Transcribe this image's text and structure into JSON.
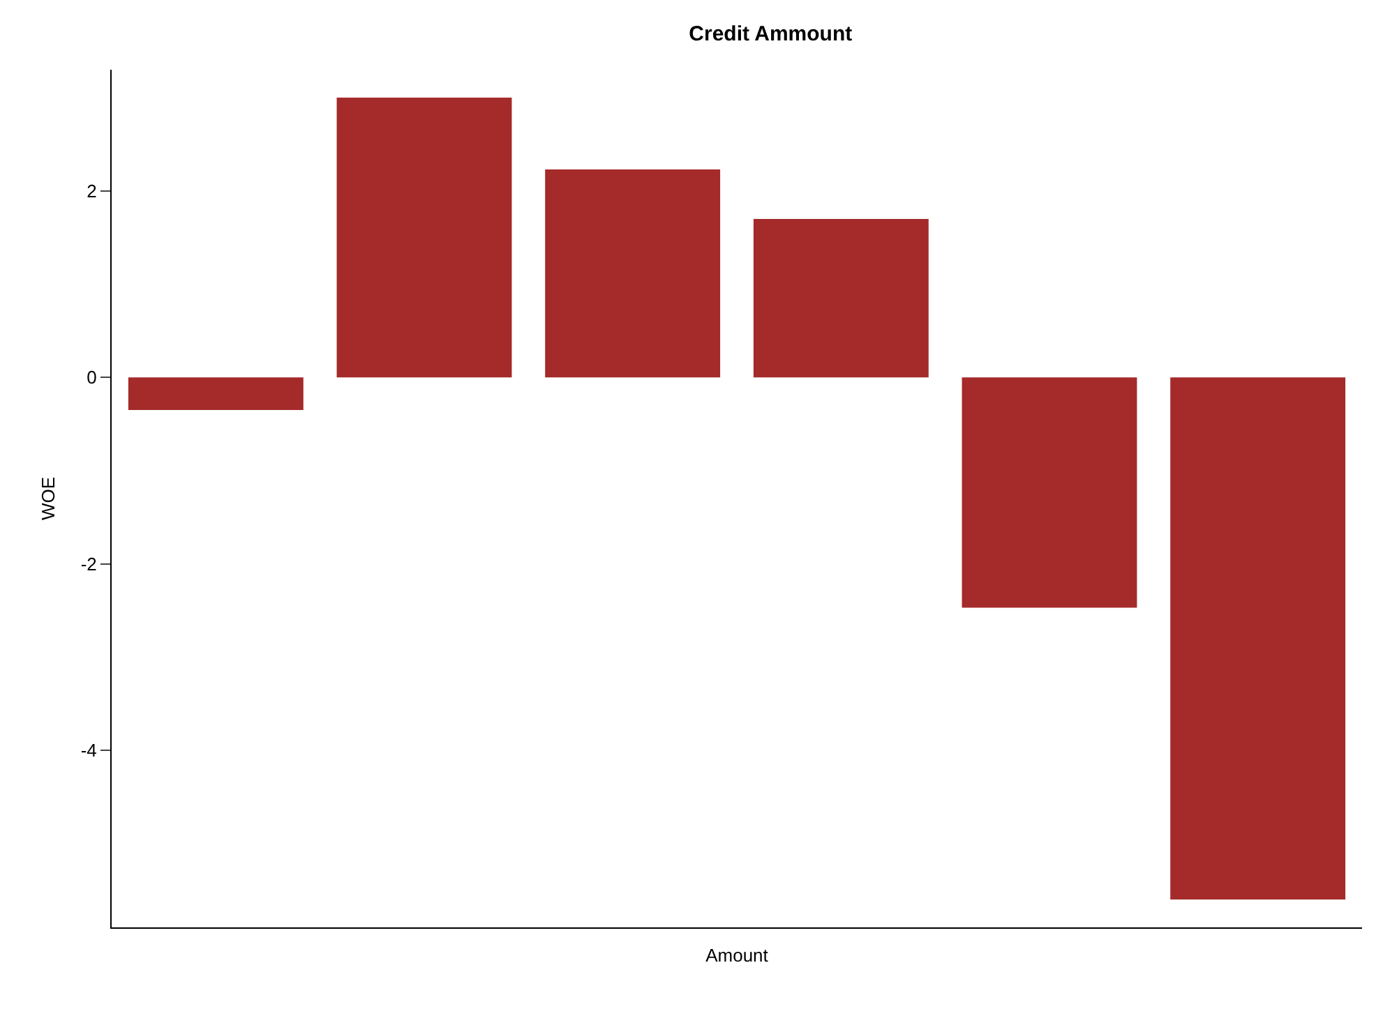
{
  "chart_data": {
    "type": "bar",
    "title": "Credit Ammount",
    "xlabel": "Amount",
    "ylabel": "WOE",
    "categories": [
      null,
      null,
      null,
      null,
      null,
      null
    ],
    "values": [
      -0.35,
      3.0,
      2.23,
      1.7,
      -2.47,
      -5.6
    ],
    "color": "#a52a2a",
    "ylim": [
      -5.9,
      3.3
    ],
    "yticks": [
      -4,
      -2,
      0,
      2
    ],
    "tick_labels": "y"
  }
}
